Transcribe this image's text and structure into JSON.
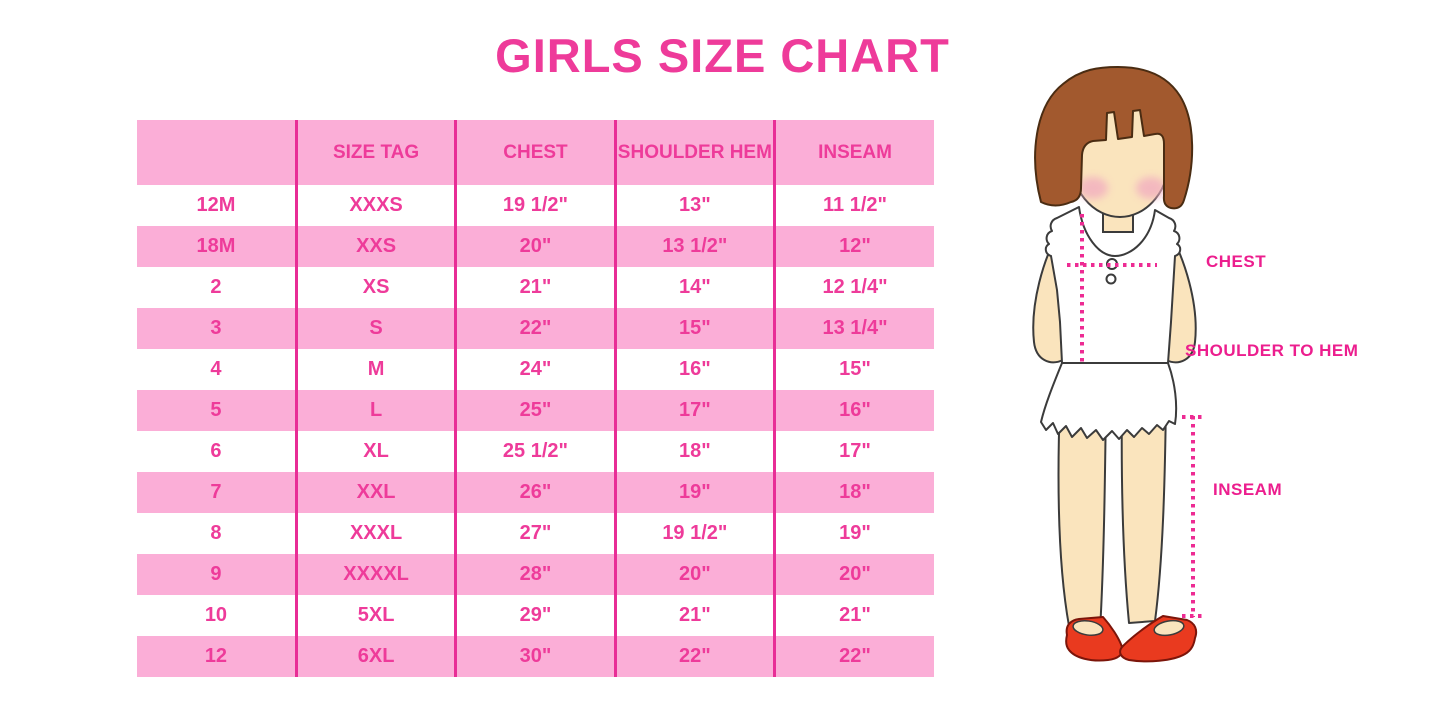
{
  "title": "GIRLS SIZE CHART",
  "colors": {
    "accent_pink_text": "#EE3B9A",
    "row_pink_background": "#FBAED7",
    "column_divider_pink": "#E82D96",
    "measure_label_pink": "#EC1E8E",
    "hair_brown": "#A2592E",
    "skin": "#FAE4BD",
    "cheek_blush": "#F2AEC0",
    "shoe_red": "#E93A1F",
    "outline_dark": "#3B3B3B"
  },
  "table": {
    "headers": [
      "",
      "SIZE TAG",
      "CHEST",
      "SHOULDER HEM",
      "INSEAM"
    ],
    "rows": [
      [
        "12M",
        "XXXS",
        "19 1/2\"",
        "13\"",
        "11 1/2\""
      ],
      [
        "18M",
        "XXS",
        "20\"",
        "13 1/2\"",
        "12\""
      ],
      [
        "2",
        "XS",
        "21\"",
        "14\"",
        "12 1/4\""
      ],
      [
        "3",
        "S",
        "22\"",
        "15\"",
        "13 1/4\""
      ],
      [
        "4",
        "M",
        "24\"",
        "16\"",
        "15\""
      ],
      [
        "5",
        "L",
        "25\"",
        "17\"",
        "16\""
      ],
      [
        "6",
        "XL",
        "25 1/2\"",
        "18\"",
        "17\""
      ],
      [
        "7",
        "XXL",
        "26\"",
        "19\"",
        "18\""
      ],
      [
        "8",
        "XXXL",
        "27\"",
        "19 1/2\"",
        "19\""
      ],
      [
        "9",
        "XXXXL",
        "28\"",
        "20\"",
        "20\""
      ],
      [
        "10",
        "5XL",
        "29\"",
        "21\"",
        "21\""
      ],
      [
        "12",
        "6XL",
        "30\"",
        "22\"",
        "22\""
      ]
    ]
  },
  "figure": {
    "labels": {
      "chest": "CHEST",
      "shoulder_to_hem": "SHOULDER TO HEM",
      "inseam": "INSEAM"
    }
  }
}
